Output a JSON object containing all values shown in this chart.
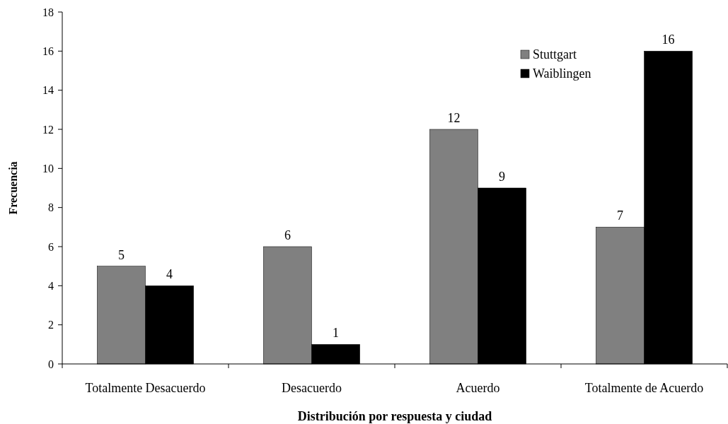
{
  "chart_data": {
    "type": "bar",
    "xlabel": "Distribución por respuesta y ciudad",
    "ylabel": "Frecuencia",
    "categories": [
      "Totalmente Desacuerdo",
      "Desacuerdo",
      "Acuerdo",
      "Totalmente de Acuerdo"
    ],
    "series": [
      {
        "name": "Stuttgart",
        "color": "#808080",
        "values": [
          5,
          6,
          12,
          7
        ]
      },
      {
        "name": "Waiblingen",
        "color": "#000000",
        "values": [
          4,
          1,
          9,
          16
        ]
      }
    ],
    "ylim": [
      0,
      18
    ],
    "yticks": [
      0,
      2,
      4,
      6,
      8,
      10,
      12,
      14,
      16,
      18
    ],
    "data_labels": true,
    "legend": "top right",
    "grid": false
  }
}
